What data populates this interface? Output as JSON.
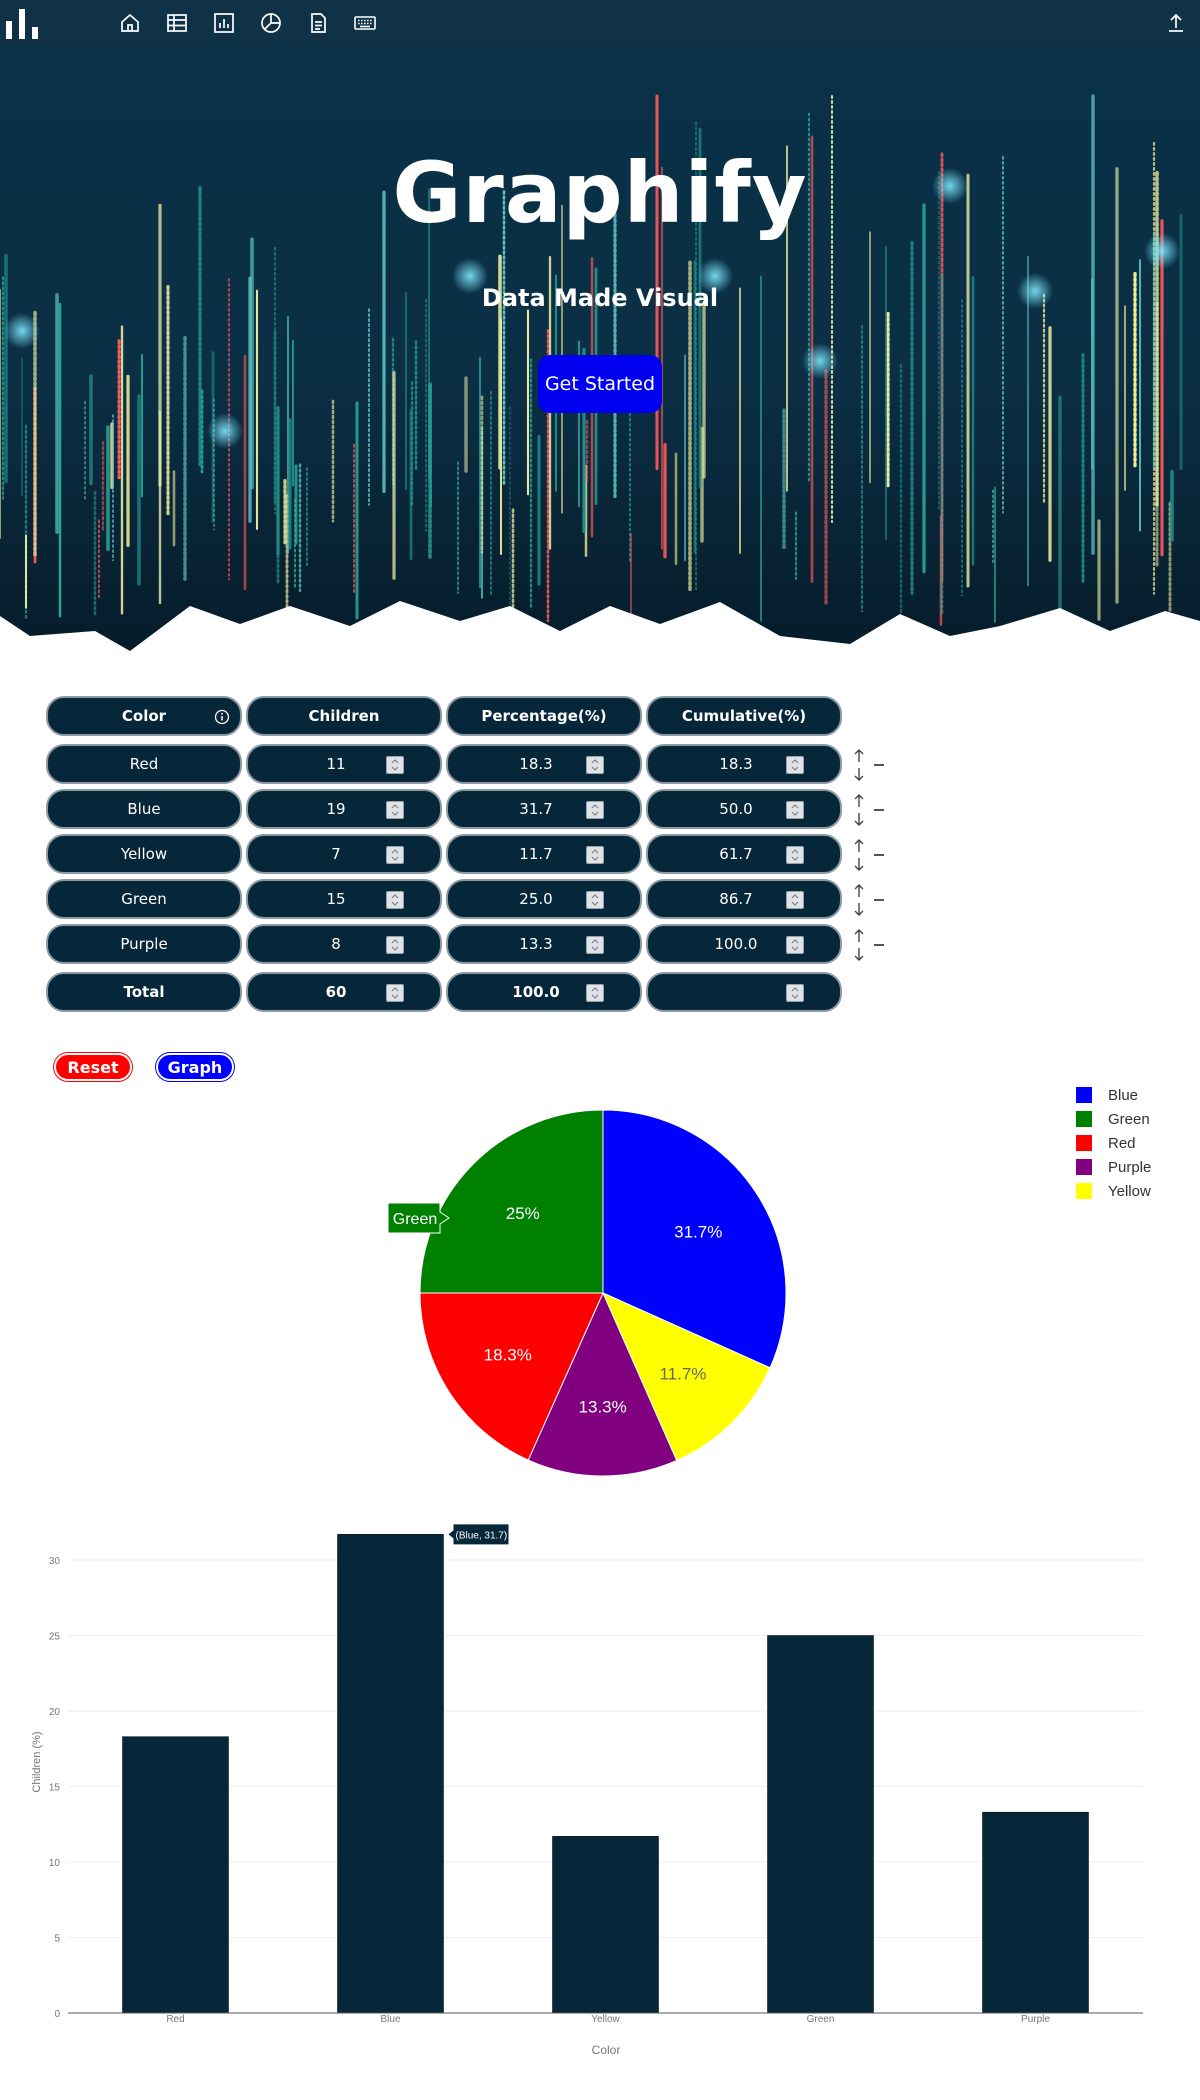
{
  "nav": {
    "icons": [
      "home-icon",
      "table-icon",
      "bar-chart-icon",
      "pie-chart-icon",
      "document-icon",
      "keyboard-icon"
    ],
    "right_icon": "upload-icon"
  },
  "hero": {
    "title": "Graphify",
    "subtitle": "Data Made Visual",
    "cta_label": "Get Started"
  },
  "table": {
    "headers": [
      "Color",
      "Children",
      "Percentage(%)",
      "Cumulative(%)"
    ],
    "rows": [
      {
        "color": "Red",
        "children": "11",
        "percentage": "18.3",
        "cumulative": "18.3"
      },
      {
        "color": "Blue",
        "children": "19",
        "percentage": "31.7",
        "cumulative": "50.0"
      },
      {
        "color": "Yellow",
        "children": "7",
        "percentage": "11.7",
        "cumulative": "61.7"
      },
      {
        "color": "Green",
        "children": "15",
        "percentage": "25.0",
        "cumulative": "86.7"
      },
      {
        "color": "Purple",
        "children": "8",
        "percentage": "13.3",
        "cumulative": "100.0"
      }
    ],
    "total": {
      "label": "Total",
      "children": "60",
      "percentage": "100.0",
      "cumulative": ""
    }
  },
  "actions": {
    "reset_label": "Reset",
    "graph_label": "Graph"
  },
  "chart_data": [
    {
      "type": "pie",
      "slices": [
        {
          "label": "Blue",
          "value": 31.7,
          "color": "#0000ff",
          "display": "31.7%"
        },
        {
          "label": "Yellow",
          "value": 11.7,
          "color": "#ffff00",
          "display": "11.7%"
        },
        {
          "label": "Purple",
          "value": 13.3,
          "color": "#800080",
          "display": "13.3%"
        },
        {
          "label": "Red",
          "value": 18.3,
          "color": "#ff0000",
          "display": "18.3%"
        },
        {
          "label": "Green",
          "value": 25.0,
          "color": "#008000",
          "display": "25%"
        }
      ],
      "legend": [
        "Blue",
        "Green",
        "Red",
        "Purple",
        "Yellow"
      ],
      "legend_position": "top-right",
      "tooltip": "Green"
    },
    {
      "type": "bar",
      "categories": [
        "Red",
        "Blue",
        "Yellow",
        "Green",
        "Purple"
      ],
      "values": [
        18.3,
        31.7,
        11.7,
        25.0,
        13.3
      ],
      "xlabel": "Color",
      "ylabel": "Children (%)",
      "ylim": [
        0,
        30
      ],
      "yticks": [
        "0",
        "5",
        "10",
        "15",
        "20",
        "25",
        "30"
      ],
      "grid": true,
      "bar_color": "#06263a",
      "tooltip": "(Blue, 31.7)"
    }
  ]
}
